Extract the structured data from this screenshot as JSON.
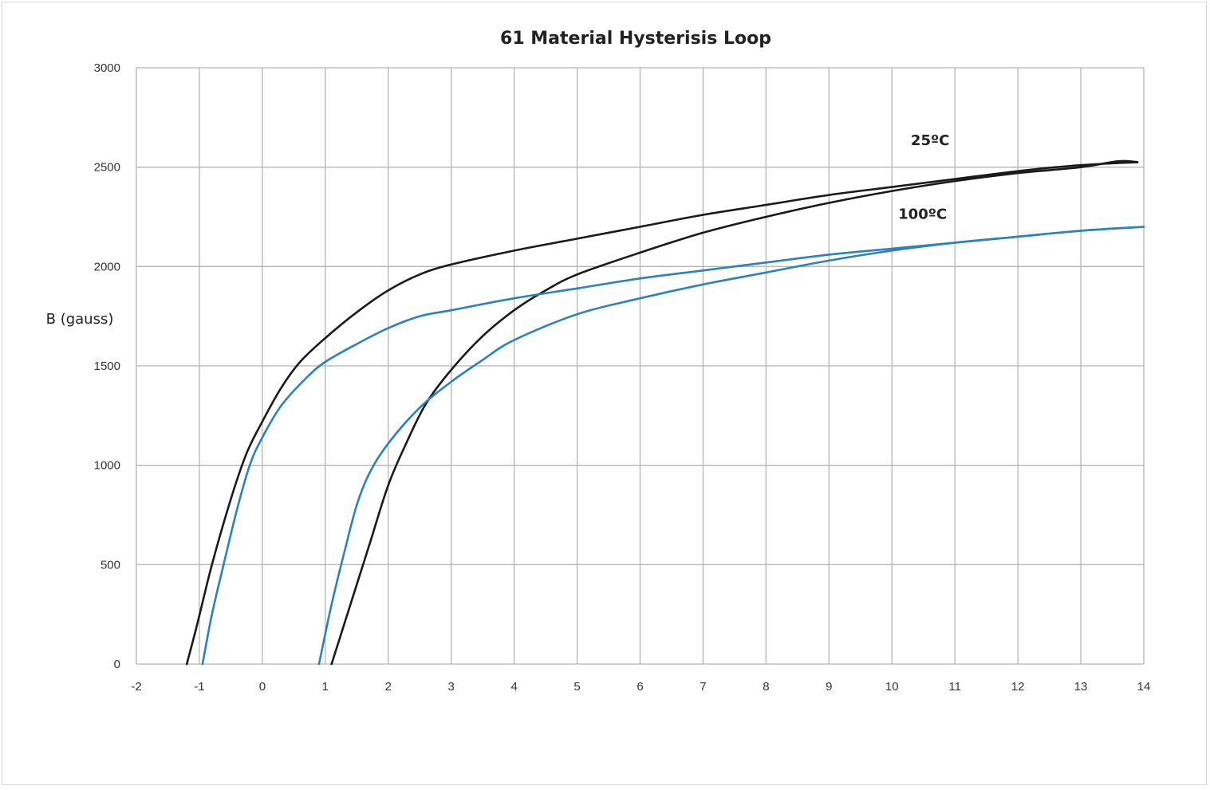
{
  "chart_data": {
    "type": "line",
    "title": "61 Material Hysterisis Loop",
    "xlabel": "",
    "ylabel": "B (gauss)",
    "xlim": [
      -2,
      14
    ],
    "ylim": [
      0,
      3000
    ],
    "x_ticks": [
      "-2",
      "-1",
      "0",
      "1",
      "2",
      "3",
      "4",
      "5",
      "6",
      "7",
      "8",
      "9",
      "10",
      "11",
      "12",
      "13",
      "14"
    ],
    "y_ticks": [
      "0",
      "500",
      "1000",
      "1500",
      "2000",
      "2500",
      "3000"
    ],
    "grid": true,
    "legend": "none",
    "annotations": [
      {
        "text": "25ºC",
        "x": 10.3,
        "y": 2610
      },
      {
        "text": "100ºC",
        "x": 10.1,
        "y": 2240
      }
    ],
    "series": [
      {
        "label": "25ºC",
        "color": "#1a1a1a",
        "segments": [
          {
            "x": [
              -1.2,
              -1.05,
              -0.8,
              -0.5,
              -0.25,
              0,
              0.3,
              0.6,
              1.0,
              1.5,
              2.0,
              2.5,
              3.0,
              4.0,
              5.0,
              6.0,
              7.0,
              8.0,
              9.0,
              10.0,
              11.0,
              12.0,
              13.0,
              13.9
            ],
            "y": [
              0,
              180,
              500,
              830,
              1060,
              1220,
              1390,
              1520,
              1640,
              1770,
              1880,
              1960,
              2010,
              2080,
              2140,
              2200,
              2260,
              2310,
              2360,
              2400,
              2440,
              2480,
              2510,
              2525
            ]
          },
          {
            "x": [
              1.1,
              1.4,
              1.7,
              2.0,
              2.3,
              2.6,
              3.0,
              3.5,
              4.0,
              4.5,
              5.0,
              6.0,
              7.0,
              8.0,
              9.0,
              10.0,
              11.0,
              12.0,
              13.0,
              13.6,
              13.9
            ],
            "y": [
              0,
              300,
              600,
              900,
              1120,
              1310,
              1480,
              1650,
              1780,
              1880,
              1960,
              2070,
              2170,
              2250,
              2320,
              2380,
              2430,
              2470,
              2500,
              2530,
              2525
            ]
          }
        ]
      },
      {
        "label": "100ºC",
        "color": "#2b82bc",
        "segments": [
          {
            "x": [
              -0.95,
              -0.8,
              -0.6,
              -0.4,
              -0.2,
              0,
              0.3,
              0.7,
              1.0,
              1.5,
              2.0,
              2.5,
              3.0,
              4.0,
              5.0,
              6.0,
              7.0,
              8.0,
              9.0,
              10.0,
              11.0,
              12.0,
              13.0,
              14.0
            ],
            "y": [
              0,
              250,
              520,
              780,
              1000,
              1140,
              1300,
              1440,
              1520,
              1610,
              1690,
              1750,
              1780,
              1840,
              1890,
              1940,
              1980,
              2020,
              2060,
              2090,
              2120,
              2150,
              2180,
              2200
            ]
          },
          {
            "x": [
              0.9,
              1.1,
              1.3,
              1.5,
              1.7,
              2.0,
              2.5,
              3.0,
              3.5,
              4.0,
              5.0,
              6.0,
              7.0,
              8.0,
              9.0,
              10.0,
              11.0,
              12.0,
              13.0,
              14.0
            ],
            "y": [
              0,
              300,
              560,
              800,
              960,
              1110,
              1290,
              1420,
              1530,
              1630,
              1760,
              1840,
              1910,
              1970,
              2030,
              2080,
              2120,
              2150,
              2180,
              2200
            ]
          }
        ]
      }
    ]
  }
}
